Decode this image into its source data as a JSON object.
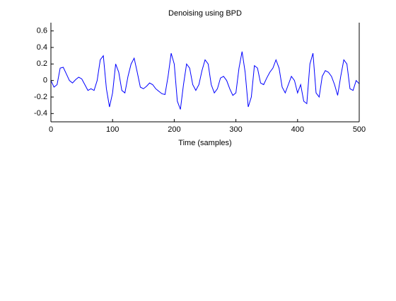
{
  "chart_data": {
    "type": "line",
    "title": "Denoising using BPD",
    "xlabel": "Time (samples)",
    "color": "#0000ff",
    "x": [
      0,
      5,
      10,
      15,
      20,
      25,
      30,
      35,
      40,
      45,
      50,
      55,
      60,
      65,
      70,
      75,
      80,
      85,
      90,
      95,
      100,
      105,
      110,
      115,
      120,
      125,
      130,
      135,
      140,
      145,
      150,
      155,
      160,
      165,
      170,
      175,
      180,
      185,
      190,
      195,
      200,
      205,
      210,
      215,
      220,
      225,
      230,
      235,
      240,
      245,
      250,
      255,
      260,
      265,
      270,
      275,
      280,
      285,
      290,
      295,
      300,
      305,
      310,
      315,
      320,
      325,
      330,
      335,
      340,
      345,
      350,
      355,
      360,
      365,
      370,
      375,
      380,
      385,
      390,
      395,
      400,
      405,
      410,
      415,
      420,
      425,
      430,
      435,
      440,
      445,
      450,
      455,
      460,
      465,
      470,
      475,
      480,
      485,
      490,
      495,
      500
    ],
    "values": [
      0,
      -0.08,
      -0.05,
      0.15,
      0.16,
      0.08,
      0.0,
      -0.03,
      0.01,
      0.04,
      0.02,
      -0.05,
      -0.12,
      -0.1,
      -0.12,
      0.0,
      0.25,
      0.3,
      -0.1,
      -0.32,
      -0.15,
      0.2,
      0.1,
      -0.12,
      -0.15,
      0.05,
      0.2,
      0.27,
      0.1,
      -0.08,
      -0.1,
      -0.07,
      -0.03,
      -0.05,
      -0.1,
      -0.13,
      -0.16,
      -0.17,
      0.05,
      0.33,
      0.2,
      -0.25,
      -0.35,
      -0.05,
      0.2,
      0.15,
      -0.05,
      -0.12,
      -0.05,
      0.12,
      0.25,
      0.2,
      -0.05,
      -0.15,
      -0.1,
      0.03,
      0.05,
      0.0,
      -0.1,
      -0.18,
      -0.15,
      0.15,
      0.35,
      0.1,
      -0.32,
      -0.2,
      0.18,
      0.15,
      -0.03,
      -0.05,
      0.03,
      0.1,
      0.15,
      0.25,
      0.15,
      -0.08,
      -0.15,
      -0.05,
      0.05,
      0.0,
      -0.15,
      -0.05,
      -0.25,
      -0.28,
      0.2,
      0.33,
      -0.15,
      -0.2,
      0.05,
      0.12,
      0.1,
      0.05,
      -0.05,
      -0.18,
      0.05,
      0.25,
      0.2,
      -0.1,
      -0.12,
      0.0,
      -0.04
    ],
    "xlim": [
      0,
      500
    ],
    "xticks": [
      0,
      100,
      200,
      300,
      400,
      500
    ],
    "ylim": [
      -0.5,
      0.7
    ],
    "yticks": [
      -0.4,
      -0.2,
      0,
      0.2,
      0.4,
      0.6
    ]
  }
}
